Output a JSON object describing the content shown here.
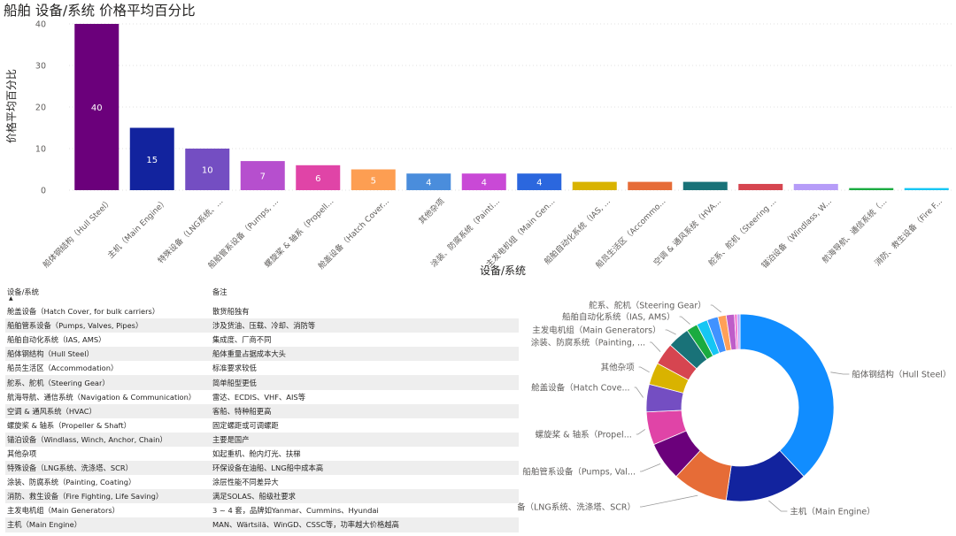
{
  "title": "船舶 设备/系统 价格平均百分比",
  "bar_chart": {
    "xlabel": "设备/系统",
    "ylabel": "价格平均百分比"
  },
  "chart_data": [
    {
      "type": "bar",
      "title": "船舶 设备/系统 价格平均百分比",
      "xlabel": "设备/系统",
      "ylabel": "价格平均百分比",
      "ylim": [
        0,
        40
      ],
      "yticks": [
        0,
        10,
        20,
        30,
        40
      ],
      "grid": true,
      "categories": [
        "船体钢结构（Hull Steel）",
        "主机（Main Engine）",
        "特殊设备（LNG系统、...",
        "船舶管系设备（Pumps, ...",
        "螺旋桨 & 轴系（Propell...",
        "舱盖设备（Hatch Cover...",
        "其他杂项",
        "涂装、防腐系统（Painti...",
        "主发电机组（Main Gen...",
        "船舶自动化系统（IAS, ...",
        "船员生活区（Accommo...",
        "空调 & 通风系统（HVA...",
        "舵系、舵机（Steering ...",
        "锚泊设备（Windlass, W...",
        "航海导航、通信系统（...",
        "消防、救生设备（Fire F..."
      ],
      "values": [
        40,
        15,
        10,
        7,
        6,
        5,
        4,
        4,
        4,
        2,
        2,
        2,
        1.5,
        1.5,
        0.5,
        0.5
      ],
      "data_labels": [
        "40",
        "15",
        "10",
        "7",
        "6",
        "5",
        "4",
        "4",
        "4",
        "",
        "",
        "",
        "",
        "",
        "",
        ""
      ],
      "colors": [
        "#6B007B",
        "#12239E",
        "#744EC2",
        "#B64FCE",
        "#E044A7",
        "#FD9E52",
        "#4A8DDC",
        "#C949D6",
        "#2B67DE",
        "#D9B300",
        "#E66C37",
        "#197278",
        "#D64550",
        "#B69CF8",
        "#1AAB40",
        "#15C6F4"
      ]
    },
    {
      "type": "pie",
      "donut": true,
      "legend": "labels outside",
      "slices": [
        {
          "label": "船体钢结构（Hull Steel）",
          "value": 40,
          "color": "#118DFF"
        },
        {
          "label": "主机（Main Engine）",
          "value": 15,
          "color": "#12239E"
        },
        {
          "label": "特殊设备（LNG系统、洗涤塔、SCR）",
          "value": 10,
          "color": "#E66C37"
        },
        {
          "label": "船舶管系设备（Pumps, Val...",
          "value": 7,
          "color": "#6B007B"
        },
        {
          "label": "螺旋桨 & 轴系（Propel...",
          "value": 6,
          "color": "#E044A7"
        },
        {
          "label": "舱盖设备（Hatch Cove...",
          "value": 5,
          "color": "#744EC2"
        },
        {
          "label": "其他杂项",
          "value": 4,
          "color": "#D9B300"
        },
        {
          "label": "涂装、防腐系统（Painting, ...",
          "value": 4,
          "color": "#D64550"
        },
        {
          "label": "主发电机组（Main Generators）",
          "value": 4,
          "color": "#197278"
        },
        {
          "label": "船舶自动化系统（IAS, AMS）",
          "value": 2,
          "color": "#1AAB40"
        },
        {
          "label": "",
          "value": 2,
          "color": "#15C6F4"
        },
        {
          "label": "",
          "value": 2,
          "color": "#4092FF"
        },
        {
          "label": "舵系、舵机（Steering Gear）",
          "value": 1.5,
          "color": "#FFA058"
        },
        {
          "label": "",
          "value": 1.5,
          "color": "#BE5DC9"
        },
        {
          "label": "",
          "value": 0.5,
          "color": "#F472D0"
        },
        {
          "label": "",
          "value": 0.5,
          "color": "#B5A1FF"
        }
      ]
    }
  ],
  "table": {
    "headers": [
      "设备/系统",
      "备注"
    ],
    "sort_icon": "sort-ascending-icon",
    "rows": [
      [
        "舱盖设备（Hatch Cover, for bulk carriers）",
        "散货船独有"
      ],
      [
        "船舶管系设备（Pumps, Valves, Pipes）",
        "涉及货油、压载、冷却、消防等"
      ],
      [
        "船舶自动化系统（IAS, AMS）",
        "集成度、厂商不同"
      ],
      [
        "船体钢结构（Hull Steel）",
        "船体重量占据成本大头"
      ],
      [
        "船员生活区（Accommodation）",
        "标准要求较低"
      ],
      [
        "舵系、舵机（Steering Gear）",
        "简单船型更低"
      ],
      [
        "航海导航、通信系统（Navigation & Communication）",
        "雷达、ECDIS、VHF、AIS等"
      ],
      [
        "空调 & 通风系统（HVAC）",
        "客船、特种船更高"
      ],
      [
        "螺旋桨 & 轴系（Propeller & Shaft）",
        "固定螺距或可调螺距"
      ],
      [
        "锚泊设备（Windlass, Winch, Anchor, Chain）",
        "主要是国产"
      ],
      [
        "其他杂项",
        "如起重机、舱内灯光、扶梯"
      ],
      [
        "特殊设备（LNG系统、洗涤塔、SCR）",
        "环保设备在油船、LNG船中成本高"
      ],
      [
        "涂装、防腐系统（Painting, Coating）",
        "涂层性能不同差异大"
      ],
      [
        "消防、救生设备（Fire Fighting, Life Saving）",
        "满足SOLAS、船级社要求"
      ],
      [
        "主发电机组（Main Generators）",
        "3 ~ 4 套，品牌如Yanmar、Cummins、Hyundai"
      ],
      [
        "主机（Main Engine）",
        "MAN、Wärtsilä、WinGD、CSSC等，功率越大价格越高"
      ]
    ]
  }
}
